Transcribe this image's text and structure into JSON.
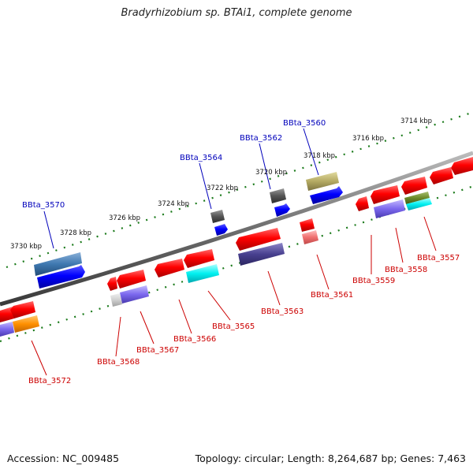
{
  "title": "Bradyrhizobium sp. BTAi1, complete genome",
  "footer": {
    "accession": "Accession: NC_009485",
    "topology": "Topology: circular; Length: 8,264,687 bp; Genes: 7,463"
  },
  "ruler_labels": [
    "3714 kbp",
    "3716 kbp",
    "3718 kbp",
    "3720 kbp",
    "3722 kbp",
    "3724 kbp",
    "3726 kbp",
    "3728 kbp",
    "3730 kbp"
  ],
  "gene_labels_top": [
    "BBta_3560",
    "BBta_3562",
    "BBta_3564",
    "BBta_3570"
  ],
  "gene_labels_bottom": [
    "BBta_3557",
    "BBta_3558",
    "BBta_3559",
    "BBta_3561",
    "BBta_3563",
    "BBta_3565",
    "BBta_3566",
    "BBta_3567",
    "BBta_3568",
    "BBta_3572"
  ],
  "colors": {
    "forward_label": "#0000bb",
    "reverse_label": "#cc0000",
    "ruler": "#1a7a1a",
    "backbone": "#777777"
  }
}
